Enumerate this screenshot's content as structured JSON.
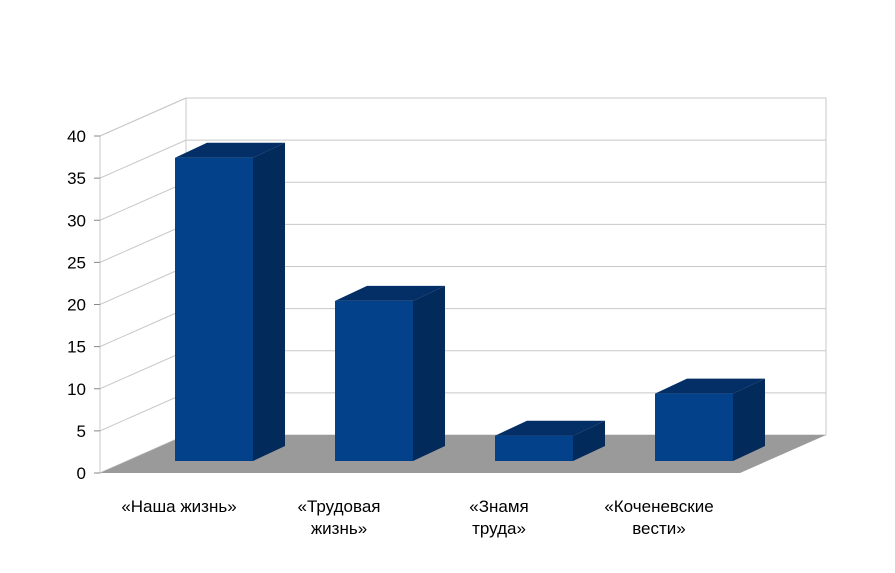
{
  "chart_data": {
    "type": "bar",
    "title": "",
    "xlabel": "",
    "ylabel": "",
    "ylim": [
      0,
      40
    ],
    "yticks": [
      0,
      5,
      10,
      15,
      20,
      25,
      30,
      35,
      40
    ],
    "grid": true,
    "legend": "none",
    "style": "3d-column",
    "categories": [
      [
        "«Наша жизнь»"
      ],
      [
        "«Трудовая",
        "жизнь»"
      ],
      [
        "«Знамя",
        "труда»"
      ],
      [
        "«Коченевские",
        "вести»"
      ]
    ],
    "values": [
      36,
      19,
      3,
      8
    ],
    "colors": {
      "bar_front": "#03428b",
      "bar_side": "#022a5a",
      "bar_top": "#032f66",
      "floor": "#9a9a9a",
      "grid": "#c8c8c8"
    }
  }
}
